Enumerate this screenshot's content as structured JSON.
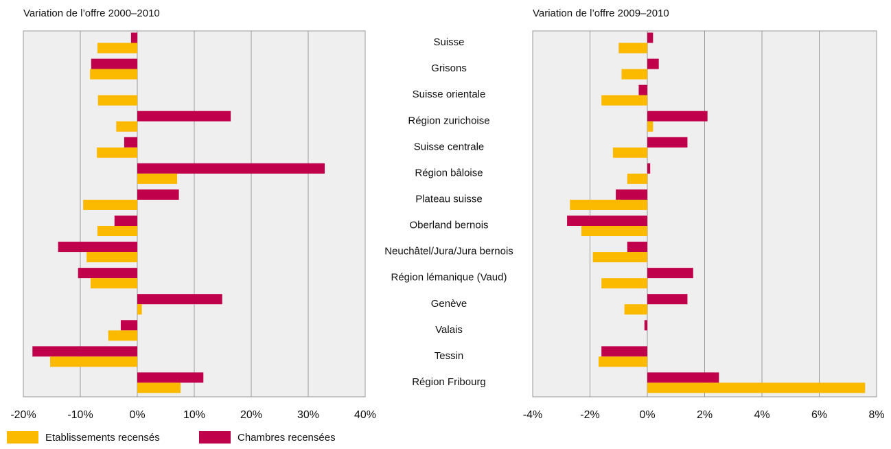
{
  "chart_data": [
    {
      "type": "bar",
      "orientation": "horizontal",
      "title": "Variation de l’offre 2000–2010",
      "categories": [
        "Suisse",
        "Grisons",
        "Suisse orientale",
        "Région zurichoise",
        "Suisse centrale",
        "Région bâloise",
        "Plateau suisse",
        "Oberland bernois",
        "Neuchâtel/Jura/Jura bernois",
        "Région lémanique (Vaud)",
        "Genève",
        "Valais",
        "Tessin",
        "Région Fribourg"
      ],
      "series": [
        {
          "name": "Etablissements recensés",
          "color": "#fbb900",
          "values": [
            -7.0,
            -8.3,
            -6.9,
            -3.7,
            -7.1,
            7.0,
            -9.5,
            -7.0,
            -8.9,
            -8.2,
            0.8,
            -5.1,
            -15.3,
            7.6
          ]
        },
        {
          "name": "Chambres recensées",
          "color": "#c0004a",
          "values": [
            -1.1,
            -8.1,
            0,
            16.4,
            -2.3,
            32.9,
            7.3,
            -4.0,
            -13.9,
            -10.4,
            14.9,
            -2.9,
            -18.4,
            11.6
          ]
        }
      ],
      "xlim": [
        -20,
        40
      ],
      "xticks": [
        {
          "value": -20,
          "label": "-20%"
        },
        {
          "value": -10,
          "label": "-10%"
        },
        {
          "value": 0,
          "label": "0%"
        },
        {
          "value": 10,
          "label": "10%"
        },
        {
          "value": 20,
          "label": "20%"
        },
        {
          "value": 30,
          "label": "30%"
        },
        {
          "value": 40,
          "label": "40%"
        }
      ],
      "grid": true
    },
    {
      "type": "bar",
      "orientation": "horizontal",
      "title": "Variation de l’offre 2009–2010",
      "series": [
        {
          "color": "#fbb900",
          "values": [
            -1.0,
            -0.9,
            -1.6,
            0.2,
            -1.2,
            -0.7,
            -2.7,
            -2.3,
            -1.9,
            -1.6,
            -0.8,
            0,
            -1.7,
            7.6
          ]
        },
        {
          "color": "#c0004a",
          "values": [
            0.2,
            0.4,
            -0.3,
            2.1,
            1.4,
            0.1,
            -1.1,
            -2.8,
            -0.7,
            1.6,
            1.4,
            -0.1,
            -1.6,
            2.5
          ]
        }
      ],
      "xlim": [
        -4,
        8
      ],
      "xticks": [
        {
          "value": -4,
          "label": "-4%"
        },
        {
          "value": -2,
          "label": "-2%"
        },
        {
          "value": 0,
          "label": "0%"
        },
        {
          "value": 2,
          "label": "2%"
        },
        {
          "value": 4,
          "label": "4%"
        },
        {
          "value": 6,
          "label": "6%"
        },
        {
          "value": 8,
          "label": "8%"
        }
      ],
      "grid": true
    }
  ]
}
